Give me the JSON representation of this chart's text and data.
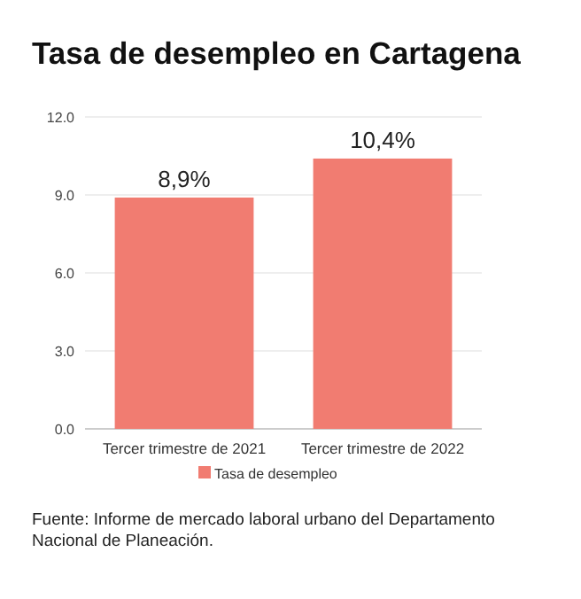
{
  "chart_data": {
    "type": "bar",
    "title": "Tasa de desempleo en Cartagena",
    "categories": [
      "Tercer trimestre de 2021",
      "Tercer trimestre de 2022"
    ],
    "series": [
      {
        "name": "Tasa de desempleo",
        "color": "#f17c71",
        "values": [
          8.9,
          10.4
        ],
        "value_labels": [
          "8,9%",
          "10,4%"
        ]
      }
    ],
    "ylim": [
      0,
      12
    ],
    "yticks": [
      {
        "value": 0,
        "label": "0.0"
      },
      {
        "value": 3,
        "label": "3.0"
      },
      {
        "value": 6,
        "label": "6.0"
      },
      {
        "value": 9,
        "label": "9.0"
      },
      {
        "value": 12,
        "label": "12.0"
      }
    ],
    "grid": "y",
    "legend": "bottom",
    "annotations": [
      "Fuente: Informe de mercado laboral urbano del Departamento Nacional de Planeación."
    ]
  }
}
